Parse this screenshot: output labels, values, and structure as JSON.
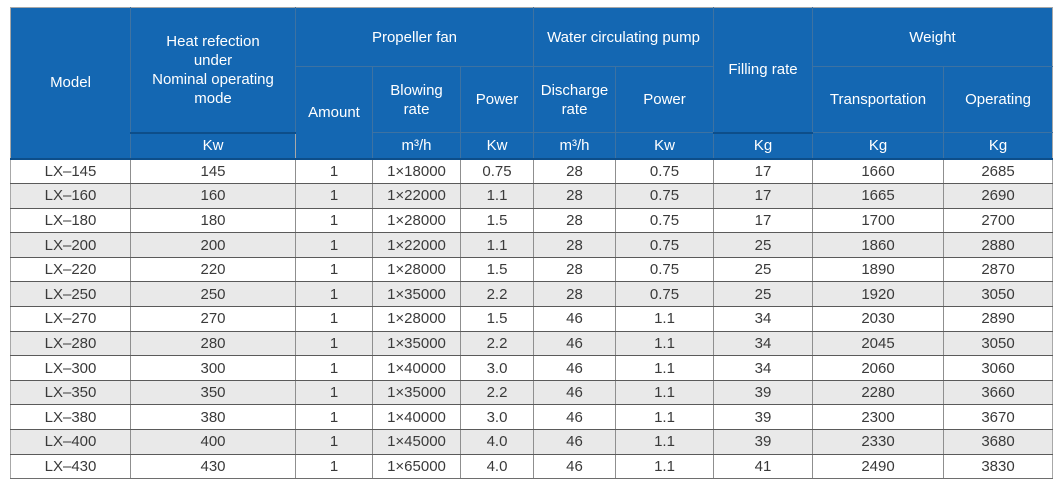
{
  "colors": {
    "header_bg": "#1467b2",
    "header_text": "#ffffff",
    "header_grid": "#3d72a2",
    "header_bottom_line": "#0d4e8a",
    "row_alt_bg": "#e9e9e9",
    "row_bg": "#ffffff",
    "body_text": "#3a3a3a",
    "grid_vertical": "#8f8f8f",
    "grid_horizontal": "#5a5a5a",
    "outer_border": "#a8a8a8"
  },
  "table": {
    "header": {
      "model": "Model",
      "heat_rejection": "Heat refection\nunder\nNominal operating\nmode",
      "propeller_fan": "Propeller fan",
      "amount": "Amount",
      "blowing_rate": "Blowing\nrate",
      "fan_power": "Power",
      "water_circulating_pump": "Water circulating pump",
      "discharge_rate": "Discharge\nrate",
      "pump_power": "Power",
      "filling_rate": "Filling rate",
      "weight": "Weight",
      "transportation": "Transportation",
      "operating": "Operating",
      "units": [
        "Kw",
        "m³/h",
        "Kw",
        "m³/h",
        "Kw",
        "Kg",
        "Kg",
        "Kg"
      ]
    },
    "column_keys": [
      "model",
      "heat-rejection",
      "fan-amount",
      "blowing-rate",
      "fan-power",
      "discharge-rate",
      "pump-power",
      "filling-rate",
      "transportation-weight",
      "operating-weight"
    ],
    "rows": [
      [
        "LX–145",
        "145",
        "1",
        "1×18000",
        "0.75",
        "28",
        "0.75",
        "17",
        "1660",
        "2685"
      ],
      [
        "LX–160",
        "160",
        "1",
        "1×22000",
        "1.1",
        "28",
        "0.75",
        "17",
        "1665",
        "2690"
      ],
      [
        "LX–180",
        "180",
        "1",
        "1×28000",
        "1.5",
        "28",
        "0.75",
        "17",
        "1700",
        "2700"
      ],
      [
        "LX–200",
        "200",
        "1",
        "1×22000",
        "1.1",
        "28",
        "0.75",
        "25",
        "1860",
        "2880"
      ],
      [
        "LX–220",
        "220",
        "1",
        "1×28000",
        "1.5",
        "28",
        "0.75",
        "25",
        "1890",
        "2870"
      ],
      [
        "LX–250",
        "250",
        "1",
        "1×35000",
        "2.2",
        "28",
        "0.75",
        "25",
        "1920",
        "3050"
      ],
      [
        "LX–270",
        "270",
        "1",
        "1×28000",
        "1.5",
        "46",
        "1.1",
        "34",
        "2030",
        "2890"
      ],
      [
        "LX–280",
        "280",
        "1",
        "1×35000",
        "2.2",
        "46",
        "1.1",
        "34",
        "2045",
        "3050"
      ],
      [
        "LX–300",
        "300",
        "1",
        "1×40000",
        "3.0",
        "46",
        "1.1",
        "34",
        "2060",
        "3060"
      ],
      [
        "LX–350",
        "350",
        "1",
        "1×35000",
        "2.2",
        "46",
        "1.1",
        "39",
        "2280",
        "3660"
      ],
      [
        "LX–380",
        "380",
        "1",
        "1×40000",
        "3.0",
        "46",
        "1.1",
        "39",
        "2300",
        "3670"
      ],
      [
        "LX–400",
        "400",
        "1",
        "1×45000",
        "4.0",
        "46",
        "1.1",
        "39",
        "2330",
        "3680"
      ],
      [
        "LX–430",
        "430",
        "1",
        "1×65000",
        "4.0",
        "46",
        "1.1",
        "41",
        "2490",
        "3830"
      ]
    ]
  }
}
